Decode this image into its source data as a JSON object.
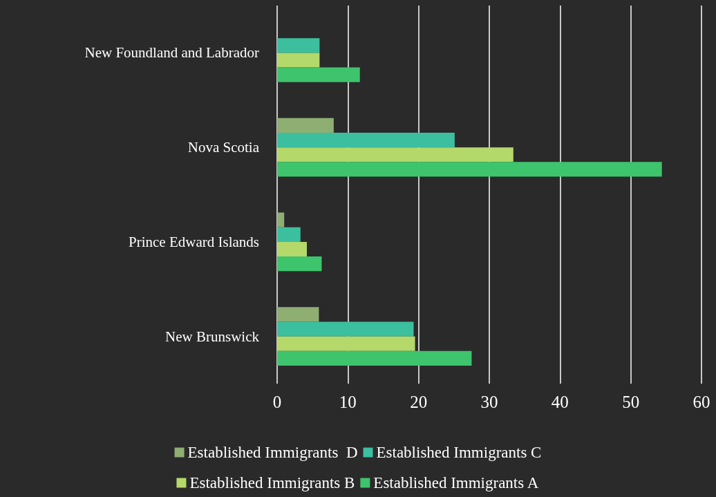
{
  "chart_data": {
    "type": "bar",
    "orientation": "horizontal",
    "categories": [
      "New Foundland and Labrador",
      "Nova Scotia",
      "Prince Edward Islands",
      "New Brunswick"
    ],
    "series": [
      {
        "name": "Established Immigrants  D",
        "color": "#8fae72",
        "values": [
          null,
          8,
          1,
          5.9
        ]
      },
      {
        "name": "Established Immigrants C",
        "color": "#3cbf9f",
        "values": [
          6,
          25.1,
          3.3,
          19.3
        ]
      },
      {
        "name": "Established Immigrants B",
        "color": "#b4d86a",
        "values": [
          6,
          33.4,
          4.2,
          19.5
        ]
      },
      {
        "name": "Established Immigrants A",
        "color": "#3ec46c",
        "values": [
          11.7,
          54.4,
          6.3,
          27.5
        ]
      }
    ],
    "xlim": [
      0,
      60
    ],
    "xticks": [
      0,
      10,
      20,
      30,
      40,
      50,
      60
    ],
    "grid": "x",
    "legend": "bottom"
  }
}
